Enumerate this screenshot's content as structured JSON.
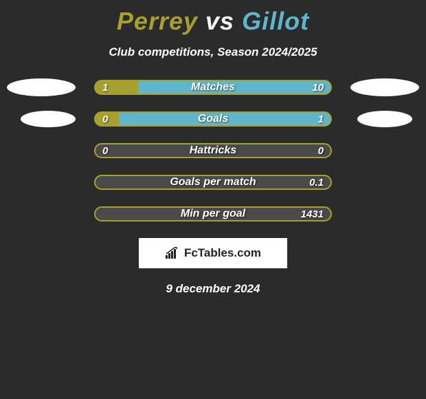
{
  "title": {
    "player1": "Perrey",
    "vs": "vs",
    "player2": "Gillot",
    "color1": "#a8a02e",
    "color_vs": "#ffffff",
    "color2": "#5fb5c9"
  },
  "subtitle": "Club competitions, Season 2024/2025",
  "colors": {
    "background": "#2b2b2b",
    "bar_fill_left": "#a8a02e",
    "bar_fill_right": "#5fb5c9",
    "bar_empty": "#4a4a4a",
    "bar_border_olive": "#a8a02e"
  },
  "rows": [
    {
      "label": "Matches",
      "left_val": "1",
      "right_val": "10",
      "left_pct": 18,
      "right_pct": 0,
      "bg": "#5fb5c9",
      "border": "#a8a02e",
      "show_avatars": true,
      "avatar_class": ""
    },
    {
      "label": "Goals",
      "left_val": "0",
      "right_val": "1",
      "left_pct": 10,
      "right_pct": 0,
      "bg": "#5fb5c9",
      "border": "#a8a02e",
      "show_avatars": true,
      "avatar_class": "avatar-narrow"
    },
    {
      "label": "Hattricks",
      "left_val": "0",
      "right_val": "0",
      "left_pct": 0,
      "right_pct": 0,
      "bg": "#4a4a4a",
      "border": "#a8a02e",
      "show_avatars": false,
      "avatar_class": ""
    },
    {
      "label": "Goals per match",
      "left_val": "",
      "right_val": "0.1",
      "left_pct": 0,
      "right_pct": 0,
      "bg": "#4a4a4a",
      "border": "#a8a02e",
      "show_avatars": false,
      "avatar_class": ""
    },
    {
      "label": "Min per goal",
      "left_val": "",
      "right_val": "1431",
      "left_pct": 0,
      "right_pct": 0,
      "bg": "#4a4a4a",
      "border": "#a8a02e",
      "show_avatars": false,
      "avatar_class": ""
    }
  ],
  "brand": {
    "text": "FcTables.com",
    "icon_color": "#222222"
  },
  "date": "9 december 2024"
}
